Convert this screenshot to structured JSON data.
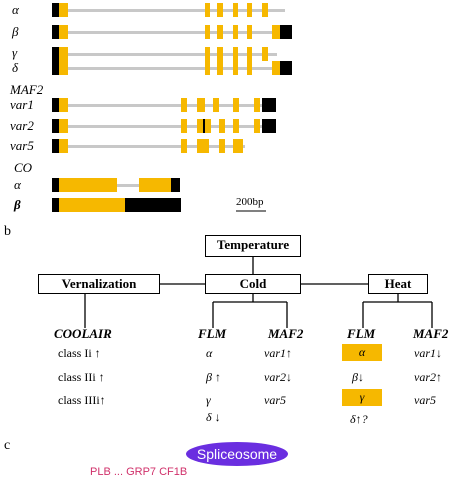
{
  "panel_a": {
    "isoform_labels": [
      "α",
      "β",
      "γ",
      "δ"
    ],
    "maf2": {
      "title": "MAF2",
      "labels": [
        "var1",
        "var2",
        "var5"
      ]
    },
    "co": {
      "title": "CO",
      "labels": [
        "α",
        "β"
      ]
    },
    "scale_bar": "200bp",
    "colors": {
      "exon": "#f6b800",
      "intron": "#c8c8c8",
      "utr": "#000000"
    }
  },
  "panel_b": {
    "label": "b",
    "temperature": "Temperature",
    "vernalization": "Vernalization",
    "cold": "Cold",
    "heat": "Heat",
    "columns": [
      "COOLAIR",
      "FLM",
      "MAF2",
      "FLM",
      "MAF2"
    ],
    "coolair": [
      "class Ii ↑",
      "class IIi ↑",
      "class IIIi↑"
    ],
    "flm_cold": [
      "α",
      "β ↑",
      "γ",
      "δ ↓"
    ],
    "maf2_cold": [
      "var1↑",
      "var2↓",
      "var5"
    ],
    "flm_heat": [
      "α",
      "β↓",
      "γ",
      "δ↑?"
    ],
    "maf2_heat": [
      "var1↓",
      "var2↑",
      "var5"
    ],
    "highlight_color": "#f6b800"
  },
  "panel_c": {
    "label": "c",
    "spliceosome": "Spliceosome",
    "partial_text": "PLB ... GRP7 CF1B"
  }
}
